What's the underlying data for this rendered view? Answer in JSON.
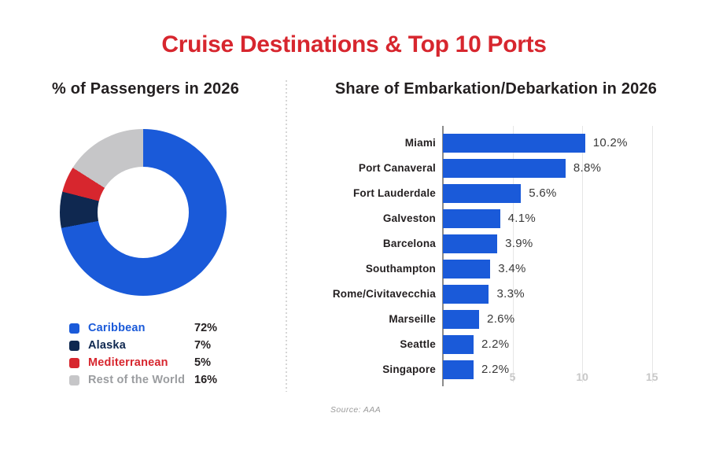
{
  "title": "Cruise Destinations & Top 10 Ports",
  "left_panel": {
    "heading": "% of Passengers in 2026"
  },
  "right_panel": {
    "heading": "Share of Embarkation/Debarkation in 2026"
  },
  "source": "Source: AAA",
  "colors": {
    "title_red": "#d7262e",
    "blue": "#1a5ad9",
    "navy": "#0f2850",
    "red": "#d7262e",
    "gray": "#c6c6c8",
    "dark_text": "#231f20",
    "rest_of_world_text": "#9b9da0",
    "tick_gray": "#c8c8c8",
    "grid_gray": "#e6e6e6",
    "axis_gray": "#8c8c8c"
  },
  "chart_data": [
    {
      "type": "pie",
      "donut": true,
      "title": "% of Passengers in 2026",
      "start_angle": "top",
      "direction": "clockwise",
      "legend_position": "bottom-left",
      "slices": [
        {
          "label": "Caribbean",
          "value": 72,
          "value_label": "72%",
          "color": "#1a5ad9",
          "label_color": "#1a5ad9"
        },
        {
          "label": "Alaska",
          "value": 7,
          "value_label": "7%",
          "color": "#0f2850",
          "label_color": "#0f2850"
        },
        {
          "label": "Mediterranean",
          "value": 5,
          "value_label": "5%",
          "color": "#d7262e",
          "label_color": "#d7262e"
        },
        {
          "label": "Rest of the World",
          "value": 16,
          "value_label": "16%",
          "color": "#c6c6c8",
          "label_color": "#9b9da0"
        }
      ]
    },
    {
      "type": "bar",
      "orientation": "horizontal",
      "title": "Share of Embarkation/Debarkation in 2026",
      "categories": [
        "Miami",
        "Port Canaveral",
        "Fort Lauderdale",
        "Galveston",
        "Barcelona",
        "Southampton",
        "Rome/Civitavecchia",
        "Marseille",
        "Seattle",
        "Singapore"
      ],
      "values": [
        10.2,
        8.8,
        5.6,
        4.1,
        3.9,
        3.4,
        3.3,
        2.6,
        2.2,
        2.2
      ],
      "value_labels": [
        "10.2%",
        "8.8%",
        "5.6%",
        "4.1%",
        "3.9%",
        "3.4%",
        "3.3%",
        "2.6%",
        "2.2%",
        "2.2%"
      ],
      "bar_color": "#1a5ad9",
      "xlim": [
        0,
        16.2
      ],
      "xticks": [
        5,
        10,
        15
      ],
      "xtick_labels": [
        "5",
        "10",
        "15"
      ],
      "grid": true
    }
  ]
}
